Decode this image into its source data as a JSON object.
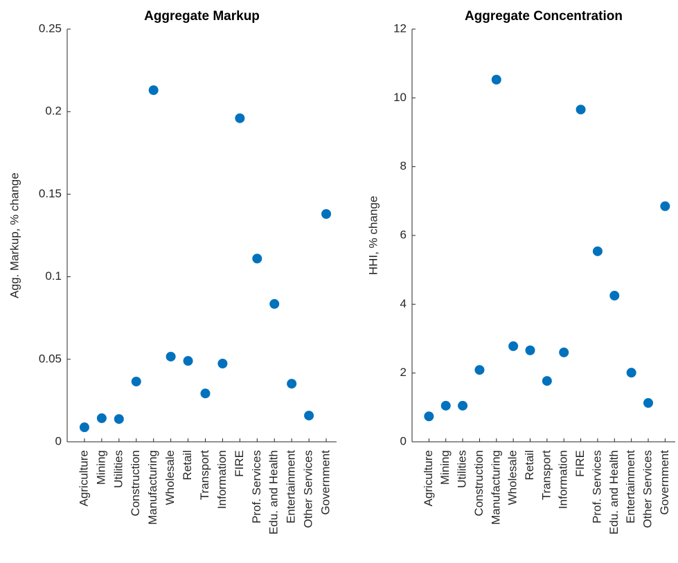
{
  "chart_data": [
    {
      "type": "scatter",
      "title": "Aggregate Markup",
      "y_label": "Agg. Markup, % change",
      "categories": [
        "Agriculture",
        "Mining",
        "Utilities",
        "Construction",
        "Manufacturing",
        "Wholesale",
        "Retail",
        "Transport",
        "Information",
        "FIRE",
        "Prof. Services",
        "Edu. and Health",
        "Entertainment",
        "Other Services",
        "Government"
      ],
      "values": [
        0.0088,
        0.0143,
        0.0138,
        0.0365,
        0.213,
        0.0516,
        0.049,
        0.0293,
        0.0474,
        0.196,
        0.111,
        0.0835,
        0.0352,
        0.0159,
        0.138
      ],
      "color": "#0072bd",
      "ylim": [
        0,
        0.25
      ],
      "yticks": [
        0,
        0.05,
        0.1,
        0.15,
        0.2,
        0.25
      ]
    },
    {
      "type": "scatter",
      "title": "Aggregate Concentration",
      "y_label": "HHI, % change",
      "categories": [
        "Agriculture",
        "Mining",
        "Utilities",
        "Construction",
        "Manufacturing",
        "Wholesale",
        "Retail",
        "Transport",
        "Information",
        "FIRE",
        "Prof. Services",
        "Edu. and Health",
        "Entertainment",
        "Other Services",
        "Government"
      ],
      "values": [
        0.74,
        1.05,
        1.05,
        2.09,
        10.53,
        2.78,
        2.66,
        1.77,
        2.6,
        9.66,
        5.54,
        4.25,
        2.01,
        1.13,
        6.85
      ],
      "color": "#0072bd",
      "ylim": [
        0,
        12
      ],
      "yticks": [
        0,
        2,
        4,
        6,
        8,
        10,
        12
      ]
    }
  ]
}
